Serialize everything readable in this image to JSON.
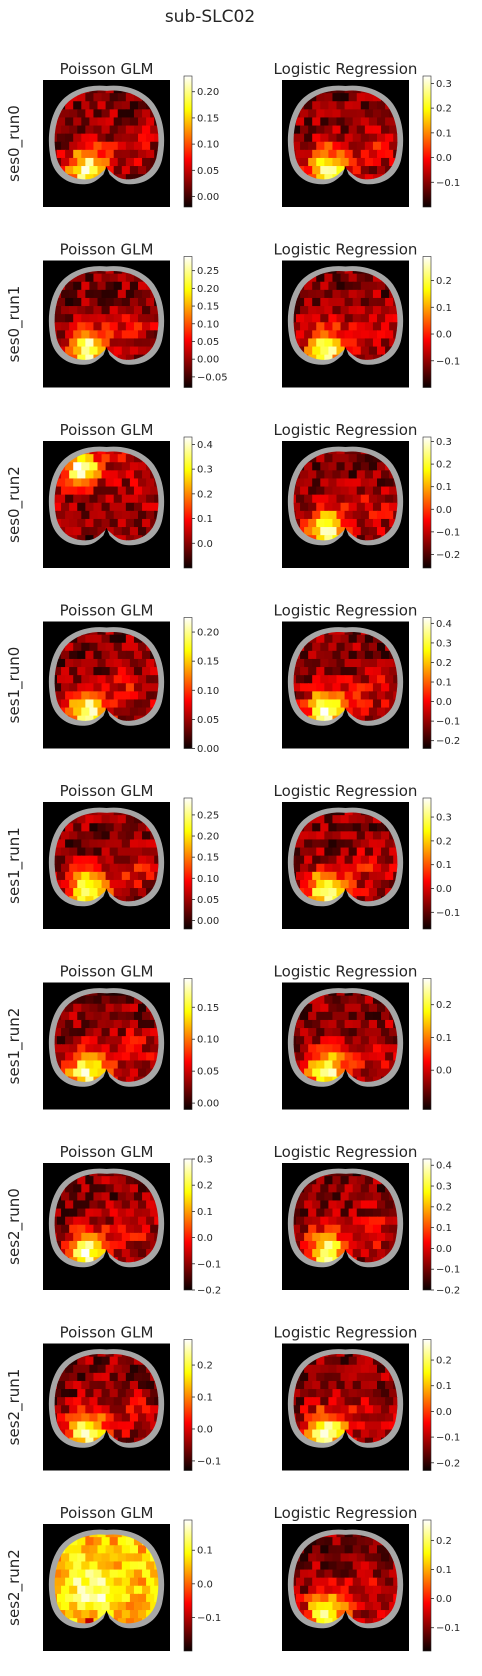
{
  "figure": {
    "title": "sub-SLC02"
  },
  "chart_data": {
    "type": "heatmap",
    "title": "sub-SLC02",
    "colormap": "hot",
    "background_color": "#000000",
    "outline_color": "#a6a6a6",
    "columns": [
      "Poisson GLM",
      "Logistic Regression"
    ],
    "rows": [
      {
        "label": "ses0_run0",
        "panels": [
          {
            "title": "Poisson GLM",
            "cbar_range": [
              -0.02,
              0.23
            ],
            "ticks": [
              "0.00",
              "0.05",
              "0.10",
              "0.15",
              "0.20"
            ],
            "tick_values": [
              0,
              0.05,
              0.1,
              0.15,
              0.2
            ],
            "hot_spot": "left-posterior"
          },
          {
            "title": "Logistic Regression",
            "cbar_range": [
              -0.2,
              0.33
            ],
            "ticks": [
              "−0.1",
              "0.0",
              "0.1",
              "0.2",
              "0.3"
            ],
            "tick_values": [
              -0.1,
              0,
              0.1,
              0.2,
              0.3
            ],
            "hot_spot": "left-posterior"
          }
        ]
      },
      {
        "label": "ses0_run1",
        "panels": [
          {
            "title": "Poisson GLM",
            "cbar_range": [
              -0.08,
              0.29
            ],
            "ticks": [
              "−0.05",
              "0.00",
              "0.05",
              "0.10",
              "0.15",
              "0.20",
              "0.25"
            ],
            "tick_values": [
              -0.05,
              0,
              0.05,
              0.1,
              0.15,
              0.2,
              0.25
            ],
            "hot_spot": "left-posterior"
          },
          {
            "title": "Logistic Regression",
            "cbar_range": [
              -0.2,
              0.29
            ],
            "ticks": [
              "−0.1",
              "0.0",
              "0.1",
              "0.2"
            ],
            "tick_values": [
              -0.1,
              0,
              0.1,
              0.2
            ],
            "hot_spot": "left-posterior"
          }
        ]
      },
      {
        "label": "ses0_run2",
        "panels": [
          {
            "title": "Poisson GLM",
            "cbar_range": [
              -0.1,
              0.43
            ],
            "ticks": [
              "0.0",
              "0.1",
              "0.2",
              "0.3",
              "0.4"
            ],
            "tick_values": [
              0,
              0.1,
              0.2,
              0.3,
              0.4
            ],
            "hot_spot": "left-anterior"
          },
          {
            "title": "Logistic Regression",
            "cbar_range": [
              -0.26,
              0.32
            ],
            "ticks": [
              "−0.2",
              "−0.1",
              "0.0",
              "0.1",
              "0.2",
              "0.3"
            ],
            "tick_values": [
              -0.2,
              -0.1,
              0,
              0.1,
              0.2,
              0.3
            ],
            "hot_spot": "left-posterior"
          }
        ]
      },
      {
        "label": "ses1_run0",
        "panels": [
          {
            "title": "Poisson GLM",
            "cbar_range": [
              0.0,
              0.225
            ],
            "ticks": [
              "0.00",
              "0.05",
              "0.10",
              "0.15",
              "0.20"
            ],
            "tick_values": [
              0,
              0.05,
              0.1,
              0.15,
              0.2
            ],
            "hot_spot": "left-posterior"
          },
          {
            "title": "Logistic Regression",
            "cbar_range": [
              -0.24,
              0.43
            ],
            "ticks": [
              "−0.2",
              "−0.1",
              "0.0",
              "0.1",
              "0.2",
              "0.3",
              "0.4"
            ],
            "tick_values": [
              -0.2,
              -0.1,
              0,
              0.1,
              0.2,
              0.3,
              0.4
            ],
            "hot_spot": "left-posterior"
          }
        ]
      },
      {
        "label": "ses1_run1",
        "panels": [
          {
            "title": "Poisson GLM",
            "cbar_range": [
              -0.02,
              0.29
            ],
            "ticks": [
              "0.00",
              "0.05",
              "0.10",
              "0.15",
              "0.20",
              "0.25"
            ],
            "tick_values": [
              0,
              0.05,
              0.1,
              0.15,
              0.2,
              0.25
            ],
            "hot_spot": "left-posterior"
          },
          {
            "title": "Logistic Regression",
            "cbar_range": [
              -0.17,
              0.38
            ],
            "ticks": [
              "−0.1",
              "0.0",
              "0.1",
              "0.2",
              "0.3"
            ],
            "tick_values": [
              -0.1,
              0,
              0.1,
              0.2,
              0.3
            ],
            "hot_spot": "left-posterior"
          }
        ]
      },
      {
        "label": "ses1_run2",
        "panels": [
          {
            "title": "Poisson GLM",
            "cbar_range": [
              -0.01,
              0.195
            ],
            "ticks": [
              "0.00",
              "0.05",
              "0.10",
              "0.15"
            ],
            "tick_values": [
              0,
              0.05,
              0.1,
              0.15
            ],
            "hot_spot": "left-posterior"
          },
          {
            "title": "Logistic Regression",
            "cbar_range": [
              -0.12,
              0.28
            ],
            "ticks": [
              "0.0",
              "0.1",
              "0.2"
            ],
            "tick_values": [
              0,
              0.1,
              0.2
            ],
            "hot_spot": "left-posterior"
          }
        ]
      },
      {
        "label": "ses2_run0",
        "panels": [
          {
            "title": "Poisson GLM",
            "cbar_range": [
              -0.2,
              0.3
            ],
            "ticks": [
              "−0.2",
              "−0.1",
              "0.0",
              "0.1",
              "0.2",
              "0.3"
            ],
            "tick_values": [
              -0.2,
              -0.1,
              0,
              0.1,
              0.2,
              0.3
            ],
            "hot_spot": "left-posterior"
          },
          {
            "title": "Logistic Regression",
            "cbar_range": [
              -0.2,
              0.43
            ],
            "ticks": [
              "−0.2",
              "−0.1",
              "0.0",
              "0.1",
              "0.2",
              "0.3",
              "0.4"
            ],
            "tick_values": [
              -0.2,
              -0.1,
              0,
              0.1,
              0.2,
              0.3,
              0.4
            ],
            "hot_spot": "left-posterior"
          }
        ]
      },
      {
        "label": "ses2_run1",
        "panels": [
          {
            "title": "Poisson GLM",
            "cbar_range": [
              -0.13,
              0.28
            ],
            "ticks": [
              "−0.1",
              "0.0",
              "0.1",
              "0.2"
            ],
            "tick_values": [
              -0.1,
              0,
              0.1,
              0.2
            ],
            "hot_spot": "left-posterior"
          },
          {
            "title": "Logistic Regression",
            "cbar_range": [
              -0.23,
              0.28
            ],
            "ticks": [
              "−0.2",
              "−0.1",
              "0.0",
              "0.1",
              "0.2"
            ],
            "tick_values": [
              -0.2,
              -0.1,
              0,
              0.1,
              0.2
            ],
            "hot_spot": "left-posterior"
          }
        ]
      },
      {
        "label": "ses2_run2",
        "panels": [
          {
            "title": "Poisson GLM",
            "cbar_range": [
              -0.2,
              0.19
            ],
            "ticks": [
              "−0.1",
              "0.0",
              "0.1"
            ],
            "tick_values": [
              -0.1,
              0,
              0.1
            ],
            "hot_spot": "broad"
          },
          {
            "title": "Logistic Regression",
            "cbar_range": [
              -0.18,
              0.27
            ],
            "ticks": [
              "−0.1",
              "0.0",
              "0.1",
              "0.2"
            ],
            "tick_values": [
              -0.1,
              0,
              0.1,
              0.2
            ],
            "hot_spot": "left-posterior"
          }
        ]
      }
    ]
  }
}
